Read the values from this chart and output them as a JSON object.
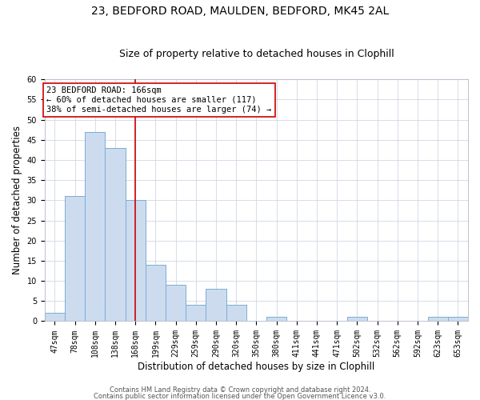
{
  "title1": "23, BEDFORD ROAD, MAULDEN, BEDFORD, MK45 2AL",
  "title2": "Size of property relative to detached houses in Clophill",
  "xlabel": "Distribution of detached houses by size in Clophill",
  "ylabel": "Number of detached properties",
  "categories": [
    "47sqm",
    "78sqm",
    "108sqm",
    "138sqm",
    "168sqm",
    "199sqm",
    "229sqm",
    "259sqm",
    "290sqm",
    "320sqm",
    "350sqm",
    "380sqm",
    "411sqm",
    "441sqm",
    "471sqm",
    "502sqm",
    "532sqm",
    "562sqm",
    "592sqm",
    "623sqm",
    "653sqm"
  ],
  "values": [
    2,
    31,
    47,
    43,
    30,
    14,
    9,
    4,
    8,
    4,
    0,
    1,
    0,
    0,
    0,
    1,
    0,
    0,
    0,
    1,
    1
  ],
  "bar_color": "#ccdcee",
  "bar_edge_color": "#7aadd4",
  "background_color": "#ffffff",
  "grid_color": "#d0d8e4",
  "vline_x_idx": 4,
  "vline_color": "#cc0000",
  "annotation_line1": "23 BEDFORD ROAD: 166sqm",
  "annotation_line2": "← 60% of detached houses are smaller (117)",
  "annotation_line3": "38% of semi-detached houses are larger (74) →",
  "annotation_box_color": "#ffffff",
  "annotation_box_edge_color": "#cc0000",
  "ylim": [
    0,
    60
  ],
  "yticks": [
    0,
    5,
    10,
    15,
    20,
    25,
    30,
    35,
    40,
    45,
    50,
    55,
    60
  ],
  "footnote1": "Contains HM Land Registry data © Crown copyright and database right 2024.",
  "footnote2": "Contains public sector information licensed under the Open Government Licence v3.0.",
  "title_fontsize": 10,
  "subtitle_fontsize": 9,
  "tick_fontsize": 7,
  "label_fontsize": 8.5,
  "annotation_fontsize": 7.5,
  "footnote_fontsize": 6
}
